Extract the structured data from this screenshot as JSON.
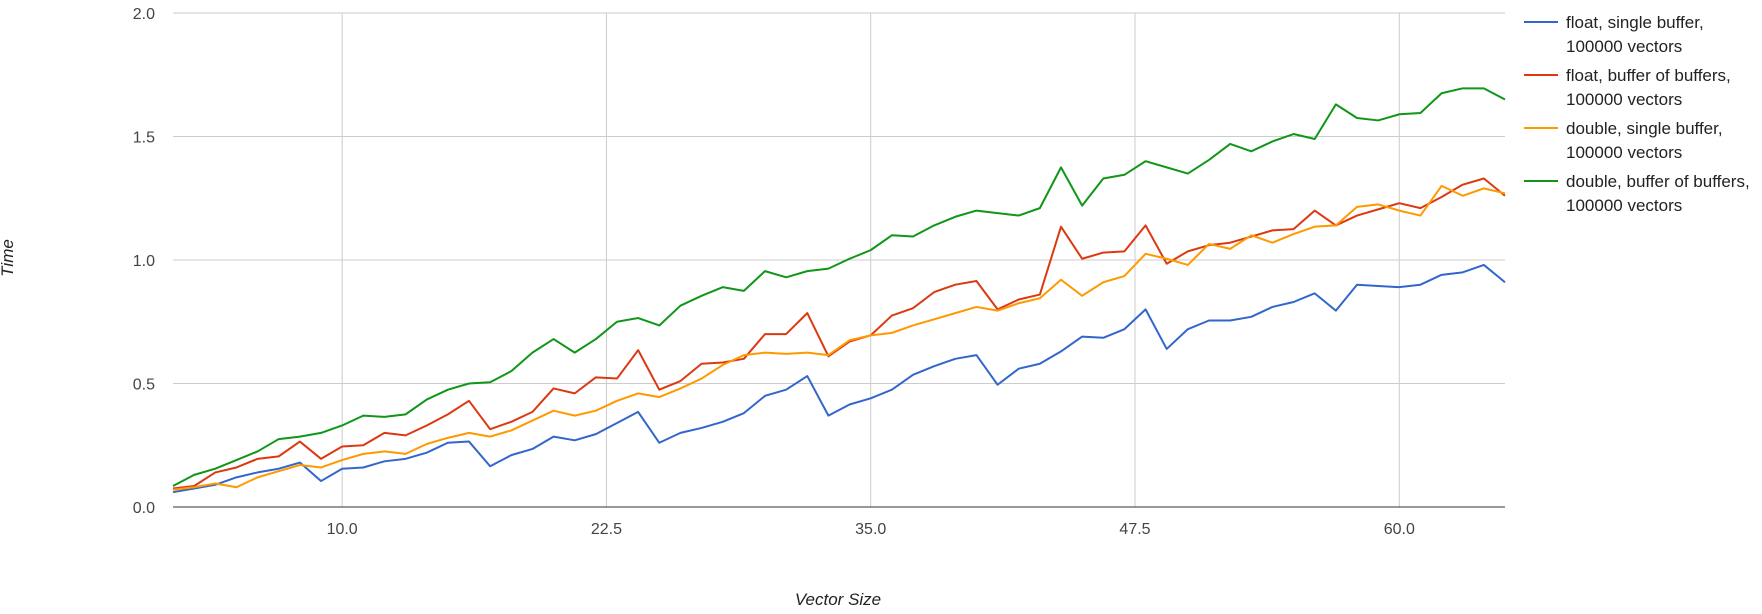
{
  "chart_data": {
    "type": "line",
    "title": "",
    "xlabel": "Vector Size",
    "ylabel": "Time",
    "xlim": [
      2,
      65
    ],
    "ylim": [
      0,
      2.0
    ],
    "grid": true,
    "legend_position": "right",
    "x_ticks": [
      "10.0",
      "22.5",
      "35.0",
      "47.5",
      "60.0"
    ],
    "x_tick_values": [
      10,
      22.5,
      35,
      47.5,
      60
    ],
    "y_ticks": [
      "0.0",
      "0.5",
      "1.0",
      "1.5",
      "2.0"
    ],
    "y_tick_values": [
      0,
      0.5,
      1.0,
      1.5,
      2.0
    ],
    "x": [
      2,
      3,
      4,
      5,
      6,
      7,
      8,
      9,
      10,
      11,
      12,
      13,
      14,
      15,
      16,
      17,
      18,
      19,
      20,
      21,
      22,
      23,
      24,
      25,
      26,
      27,
      28,
      29,
      30,
      31,
      32,
      33,
      34,
      35,
      36,
      37,
      38,
      39,
      40,
      41,
      42,
      43,
      44,
      45,
      46,
      47,
      48,
      49,
      50,
      51,
      52,
      53,
      54,
      55,
      56,
      57,
      58,
      59,
      60,
      61,
      62,
      63,
      64,
      65
    ],
    "series": [
      {
        "name": "float, single buffer,",
        "name_line2": "100000 vectors",
        "color": "#3366cc",
        "values": [
          0.06,
          0.075,
          0.09,
          0.12,
          0.14,
          0.155,
          0.18,
          0.105,
          0.155,
          0.16,
          0.185,
          0.195,
          0.22,
          0.26,
          0.265,
          0.165,
          0.21,
          0.235,
          0.285,
          0.27,
          0.295,
          0.34,
          0.385,
          0.26,
          0.3,
          0.32,
          0.345,
          0.38,
          0.45,
          0.475,
          0.53,
          0.37,
          0.415,
          0.44,
          0.475,
          0.535,
          0.57,
          0.6,
          0.615,
          0.495,
          0.56,
          0.58,
          0.63,
          0.69,
          0.685,
          0.72,
          0.8,
          0.64,
          0.72,
          0.755,
          0.755,
          0.77,
          0.81,
          0.83,
          0.865,
          0.795,
          0.9,
          0.895,
          0.89,
          0.9,
          0.94,
          0.95,
          0.98,
          0.91
        ]
      },
      {
        "name": "float, buffer of buffers,",
        "name_line2": "100000 vectors",
        "color": "#dc3912",
        "values": [
          0.075,
          0.085,
          0.14,
          0.16,
          0.195,
          0.205,
          0.265,
          0.195,
          0.245,
          0.25,
          0.3,
          0.29,
          0.33,
          0.375,
          0.43,
          0.315,
          0.345,
          0.385,
          0.48,
          0.46,
          0.525,
          0.52,
          0.635,
          0.475,
          0.51,
          0.58,
          0.585,
          0.6,
          0.7,
          0.7,
          0.785,
          0.61,
          0.67,
          0.695,
          0.775,
          0.805,
          0.87,
          0.9,
          0.915,
          0.8,
          0.84,
          0.86,
          1.135,
          1.005,
          1.03,
          1.035,
          1.14,
          0.985,
          1.035,
          1.06,
          1.07,
          1.095,
          1.12,
          1.125,
          1.2,
          1.14,
          1.18,
          1.205,
          1.23,
          1.21,
          1.255,
          1.305,
          1.33,
          1.26
        ]
      },
      {
        "name": "double, single buffer,",
        "name_line2": "100000 vectors",
        "color": "#ff9900",
        "values": [
          0.07,
          0.08,
          0.095,
          0.08,
          0.12,
          0.145,
          0.17,
          0.16,
          0.19,
          0.215,
          0.225,
          0.215,
          0.255,
          0.28,
          0.3,
          0.285,
          0.31,
          0.35,
          0.39,
          0.37,
          0.39,
          0.43,
          0.46,
          0.445,
          0.48,
          0.52,
          0.575,
          0.615,
          0.625,
          0.62,
          0.625,
          0.615,
          0.675,
          0.695,
          0.705,
          0.735,
          0.76,
          0.785,
          0.81,
          0.795,
          0.825,
          0.845,
          0.92,
          0.855,
          0.91,
          0.935,
          1.025,
          1.005,
          0.98,
          1.065,
          1.045,
          1.1,
          1.07,
          1.105,
          1.135,
          1.14,
          1.215,
          1.225,
          1.2,
          1.18,
          1.3,
          1.26,
          1.29,
          1.27
        ]
      },
      {
        "name": "double, buffer of buffers,",
        "name_line2": "100000 vectors",
        "color": "#109618",
        "values": [
          0.085,
          0.13,
          0.155,
          0.19,
          0.225,
          0.275,
          0.285,
          0.3,
          0.33,
          0.37,
          0.365,
          0.375,
          0.435,
          0.475,
          0.5,
          0.505,
          0.55,
          0.625,
          0.68,
          0.625,
          0.68,
          0.75,
          0.765,
          0.735,
          0.815,
          0.855,
          0.89,
          0.875,
          0.955,
          0.93,
          0.955,
          0.965,
          1.005,
          1.04,
          1.1,
          1.095,
          1.14,
          1.175,
          1.2,
          1.19,
          1.18,
          1.21,
          1.375,
          1.22,
          1.33,
          1.345,
          1.4,
          1.375,
          1.35,
          1.405,
          1.47,
          1.44,
          1.48,
          1.51,
          1.49,
          1.63,
          1.575,
          1.565,
          1.59,
          1.595,
          1.675,
          1.695,
          1.695,
          1.65
        ]
      }
    ]
  }
}
